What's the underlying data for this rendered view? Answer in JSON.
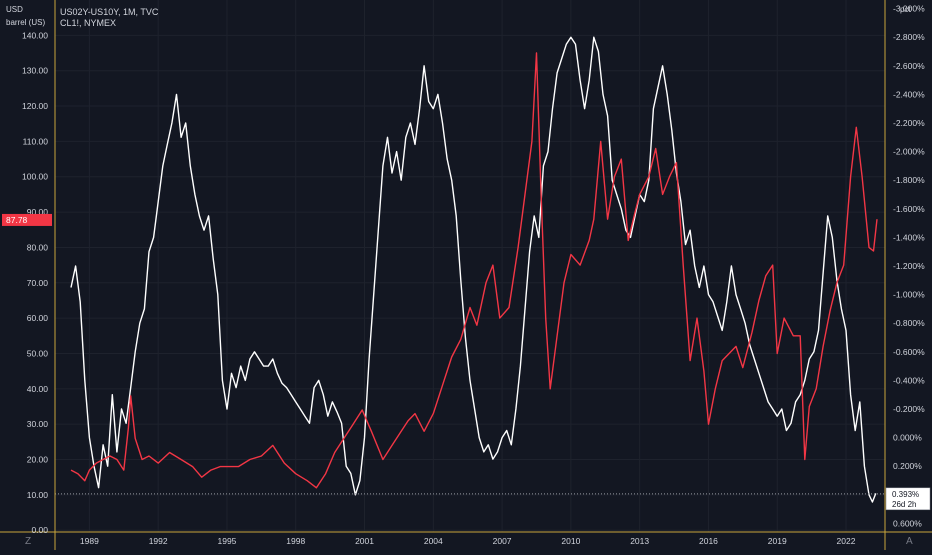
{
  "chart_data": {
    "type": "line",
    "title": "US02Y-US10Y, 1M, TVC",
    "subtitle": "CL1!, NYMEX",
    "left_axis": {
      "unit": "USD",
      "label": "barrel (US)",
      "ticks": [
        "0.00",
        "10.00",
        "20.00",
        "30.00",
        "40.00",
        "50.00",
        "60.00",
        "70.00",
        "80.00",
        "90.00",
        "100.00",
        "110.00",
        "120.00",
        "130.00",
        "140.00"
      ],
      "range": [
        -0.5,
        150
      ]
    },
    "right_axis": {
      "unit": "pct",
      "ticks": [
        "0.600%",
        "0.400%",
        "0.200%",
        "0.000%",
        "-0.200%",
        "-0.400%",
        "-0.600%",
        "-0.800%",
        "-1.000%",
        "-1.200%",
        "-1.400%",
        "-1.600%",
        "-1.800%",
        "-2.000%",
        "-2.200%",
        "-2.400%",
        "-2.600%",
        "-2.800%",
        "-3.000%"
      ],
      "range": [
        0.66,
        -3.06
      ]
    },
    "x_axis": {
      "ticks": [
        "1989",
        "1992",
        "1995",
        "1998",
        "2001",
        "2004",
        "2007",
        "2010",
        "2013",
        "2016",
        "2019",
        "2022"
      ],
      "range": [
        1987.5,
        2023.7
      ]
    },
    "series": [
      {
        "name": "US02Y-US10Y",
        "axis": "right",
        "color": "#ffffff",
        "points": [
          [
            1988.2,
            -1.05
          ],
          [
            1988.4,
            -1.2
          ],
          [
            1988.6,
            -0.95
          ],
          [
            1988.8,
            -0.4
          ],
          [
            1989.0,
            0.0
          ],
          [
            1989.2,
            0.2
          ],
          [
            1989.4,
            0.35
          ],
          [
            1989.6,
            0.05
          ],
          [
            1989.8,
            0.2
          ],
          [
            1990.0,
            -0.3
          ],
          [
            1990.2,
            0.1
          ],
          [
            1990.4,
            -0.2
          ],
          [
            1990.6,
            -0.1
          ],
          [
            1990.8,
            -0.35
          ],
          [
            1991.0,
            -0.6
          ],
          [
            1991.2,
            -0.8
          ],
          [
            1991.4,
            -0.9
          ],
          [
            1991.6,
            -1.3
          ],
          [
            1991.8,
            -1.4
          ],
          [
            1992.0,
            -1.65
          ],
          [
            1992.2,
            -1.9
          ],
          [
            1992.4,
            -2.05
          ],
          [
            1992.6,
            -2.2
          ],
          [
            1992.8,
            -2.4
          ],
          [
            1993.0,
            -2.1
          ],
          [
            1993.2,
            -2.2
          ],
          [
            1993.4,
            -1.9
          ],
          [
            1993.6,
            -1.7
          ],
          [
            1993.8,
            -1.55
          ],
          [
            1994.0,
            -1.45
          ],
          [
            1994.2,
            -1.55
          ],
          [
            1994.4,
            -1.25
          ],
          [
            1994.6,
            -1.0
          ],
          [
            1994.8,
            -0.4
          ],
          [
            1995.0,
            -0.2
          ],
          [
            1995.2,
            -0.45
          ],
          [
            1995.4,
            -0.35
          ],
          [
            1995.6,
            -0.5
          ],
          [
            1995.8,
            -0.4
          ],
          [
            1996.0,
            -0.55
          ],
          [
            1996.2,
            -0.6
          ],
          [
            1996.4,
            -0.55
          ],
          [
            1996.6,
            -0.5
          ],
          [
            1996.8,
            -0.5
          ],
          [
            1997.0,
            -0.55
          ],
          [
            1997.2,
            -0.45
          ],
          [
            1997.4,
            -0.38
          ],
          [
            1997.6,
            -0.35
          ],
          [
            1997.8,
            -0.3
          ],
          [
            1998.0,
            -0.25
          ],
          [
            1998.2,
            -0.2
          ],
          [
            1998.4,
            -0.15
          ],
          [
            1998.6,
            -0.1
          ],
          [
            1998.8,
            -0.35
          ],
          [
            1999.0,
            -0.4
          ],
          [
            1999.2,
            -0.3
          ],
          [
            1999.4,
            -0.15
          ],
          [
            1999.6,
            -0.25
          ],
          [
            1999.8,
            -0.18
          ],
          [
            2000.0,
            -0.1
          ],
          [
            2000.2,
            0.2
          ],
          [
            2000.4,
            0.25
          ],
          [
            2000.6,
            0.4
          ],
          [
            2000.8,
            0.3
          ],
          [
            2001.0,
            0.0
          ],
          [
            2001.2,
            -0.55
          ],
          [
            2001.4,
            -1.0
          ],
          [
            2001.6,
            -1.45
          ],
          [
            2001.8,
            -1.9
          ],
          [
            2002.0,
            -2.1
          ],
          [
            2002.2,
            -1.85
          ],
          [
            2002.4,
            -2.0
          ],
          [
            2002.6,
            -1.8
          ],
          [
            2002.8,
            -2.1
          ],
          [
            2003.0,
            -2.2
          ],
          [
            2003.2,
            -2.05
          ],
          [
            2003.4,
            -2.3
          ],
          [
            2003.6,
            -2.6
          ],
          [
            2003.8,
            -2.35
          ],
          [
            2004.0,
            -2.3
          ],
          [
            2004.2,
            -2.4
          ],
          [
            2004.4,
            -2.2
          ],
          [
            2004.6,
            -1.95
          ],
          [
            2004.8,
            -1.8
          ],
          [
            2005.0,
            -1.55
          ],
          [
            2005.2,
            -1.1
          ],
          [
            2005.4,
            -0.7
          ],
          [
            2005.6,
            -0.4
          ],
          [
            2005.8,
            -0.2
          ],
          [
            2006.0,
            0.0
          ],
          [
            2006.2,
            0.1
          ],
          [
            2006.4,
            0.05
          ],
          [
            2006.6,
            0.15
          ],
          [
            2006.8,
            0.1
          ],
          [
            2007.0,
            0.0
          ],
          [
            2007.2,
            -0.05
          ],
          [
            2007.4,
            0.05
          ],
          [
            2007.6,
            -0.2
          ],
          [
            2007.8,
            -0.5
          ],
          [
            2008.0,
            -0.9
          ],
          [
            2008.2,
            -1.3
          ],
          [
            2008.4,
            -1.55
          ],
          [
            2008.6,
            -1.4
          ],
          [
            2008.8,
            -1.9
          ],
          [
            2009.0,
            -2.0
          ],
          [
            2009.2,
            -2.3
          ],
          [
            2009.4,
            -2.55
          ],
          [
            2009.6,
            -2.65
          ],
          [
            2009.8,
            -2.75
          ],
          [
            2010.0,
            -2.8
          ],
          [
            2010.2,
            -2.75
          ],
          [
            2010.4,
            -2.5
          ],
          [
            2010.6,
            -2.3
          ],
          [
            2010.8,
            -2.5
          ],
          [
            2011.0,
            -2.8
          ],
          [
            2011.2,
            -2.7
          ],
          [
            2011.4,
            -2.4
          ],
          [
            2011.6,
            -2.25
          ],
          [
            2011.8,
            -1.8
          ],
          [
            2012.0,
            -1.7
          ],
          [
            2012.2,
            -1.6
          ],
          [
            2012.4,
            -1.45
          ],
          [
            2012.6,
            -1.4
          ],
          [
            2012.8,
            -1.55
          ],
          [
            2013.0,
            -1.7
          ],
          [
            2013.2,
            -1.65
          ],
          [
            2013.4,
            -1.8
          ],
          [
            2013.6,
            -2.3
          ],
          [
            2013.8,
            -2.45
          ],
          [
            2014.0,
            -2.6
          ],
          [
            2014.2,
            -2.4
          ],
          [
            2014.4,
            -2.15
          ],
          [
            2014.6,
            -1.85
          ],
          [
            2014.8,
            -1.65
          ],
          [
            2015.0,
            -1.35
          ],
          [
            2015.2,
            -1.45
          ],
          [
            2015.4,
            -1.2
          ],
          [
            2015.6,
            -1.05
          ],
          [
            2015.8,
            -1.2
          ],
          [
            2016.0,
            -1.0
          ],
          [
            2016.2,
            -0.95
          ],
          [
            2016.4,
            -0.85
          ],
          [
            2016.6,
            -0.75
          ],
          [
            2016.8,
            -0.95
          ],
          [
            2017.0,
            -1.2
          ],
          [
            2017.2,
            -1.0
          ],
          [
            2017.4,
            -0.9
          ],
          [
            2017.6,
            -0.8
          ],
          [
            2017.8,
            -0.65
          ],
          [
            2018.0,
            -0.55
          ],
          [
            2018.2,
            -0.45
          ],
          [
            2018.4,
            -0.35
          ],
          [
            2018.6,
            -0.25
          ],
          [
            2018.8,
            -0.2
          ],
          [
            2019.0,
            -0.15
          ],
          [
            2019.2,
            -0.2
          ],
          [
            2019.4,
            -0.05
          ],
          [
            2019.6,
            -0.1
          ],
          [
            2019.8,
            -0.25
          ],
          [
            2020.0,
            -0.3
          ],
          [
            2020.2,
            -0.4
          ],
          [
            2020.4,
            -0.55
          ],
          [
            2020.6,
            -0.6
          ],
          [
            2020.8,
            -0.75
          ],
          [
            2021.0,
            -1.15
          ],
          [
            2021.2,
            -1.55
          ],
          [
            2021.4,
            -1.4
          ],
          [
            2021.6,
            -1.1
          ],
          [
            2021.8,
            -0.9
          ],
          [
            2022.0,
            -0.75
          ],
          [
            2022.2,
            -0.3
          ],
          [
            2022.4,
            -0.05
          ],
          [
            2022.6,
            -0.25
          ],
          [
            2022.8,
            0.2
          ],
          [
            2023.0,
            0.4
          ],
          [
            2023.15,
            0.45
          ],
          [
            2023.3,
            0.39
          ]
        ]
      },
      {
        "name": "CL1!",
        "axis": "left",
        "color": "#f23645",
        "points": [
          [
            1988.2,
            17
          ],
          [
            1988.5,
            16
          ],
          [
            1988.8,
            14
          ],
          [
            1989.0,
            17
          ],
          [
            1989.3,
            19
          ],
          [
            1989.6,
            20
          ],
          [
            1989.9,
            21
          ],
          [
            1990.2,
            20
          ],
          [
            1990.5,
            17
          ],
          [
            1990.7,
            29
          ],
          [
            1990.8,
            38
          ],
          [
            1991.0,
            26
          ],
          [
            1991.3,
            20
          ],
          [
            1991.6,
            21
          ],
          [
            1992.0,
            19
          ],
          [
            1992.5,
            22
          ],
          [
            1993.0,
            20
          ],
          [
            1993.5,
            18
          ],
          [
            1993.9,
            15
          ],
          [
            1994.3,
            17
          ],
          [
            1994.7,
            18
          ],
          [
            1995.0,
            18
          ],
          [
            1995.5,
            18
          ],
          [
            1996.0,
            20
          ],
          [
            1996.5,
            21
          ],
          [
            1997.0,
            24
          ],
          [
            1997.5,
            19
          ],
          [
            1998.0,
            16
          ],
          [
            1998.5,
            14
          ],
          [
            1998.9,
            12
          ],
          [
            1999.3,
            16
          ],
          [
            1999.7,
            22
          ],
          [
            2000.0,
            25
          ],
          [
            2000.5,
            30
          ],
          [
            2000.9,
            34
          ],
          [
            2001.3,
            28
          ],
          [
            2001.8,
            20
          ],
          [
            2002.2,
            24
          ],
          [
            2002.6,
            28
          ],
          [
            2002.9,
            31
          ],
          [
            2003.2,
            33
          ],
          [
            2003.6,
            28
          ],
          [
            2004.0,
            33
          ],
          [
            2004.4,
            41
          ],
          [
            2004.8,
            49
          ],
          [
            2005.2,
            54
          ],
          [
            2005.6,
            63
          ],
          [
            2005.9,
            58
          ],
          [
            2006.3,
            70
          ],
          [
            2006.6,
            75
          ],
          [
            2006.9,
            60
          ],
          [
            2007.3,
            63
          ],
          [
            2007.7,
            80
          ],
          [
            2008.0,
            95
          ],
          [
            2008.3,
            110
          ],
          [
            2008.5,
            135
          ],
          [
            2008.7,
            95
          ],
          [
            2008.9,
            60
          ],
          [
            2009.1,
            40
          ],
          [
            2009.4,
            55
          ],
          [
            2009.7,
            70
          ],
          [
            2010.0,
            78
          ],
          [
            2010.4,
            75
          ],
          [
            2010.8,
            82
          ],
          [
            2011.0,
            88
          ],
          [
            2011.3,
            110
          ],
          [
            2011.6,
            88
          ],
          [
            2011.9,
            100
          ],
          [
            2012.2,
            105
          ],
          [
            2012.5,
            82
          ],
          [
            2012.8,
            90
          ],
          [
            2013.0,
            95
          ],
          [
            2013.4,
            100
          ],
          [
            2013.7,
            108
          ],
          [
            2014.0,
            95
          ],
          [
            2014.3,
            100
          ],
          [
            2014.6,
            104
          ],
          [
            2014.9,
            75
          ],
          [
            2015.2,
            48
          ],
          [
            2015.5,
            60
          ],
          [
            2015.8,
            45
          ],
          [
            2016.0,
            30
          ],
          [
            2016.3,
            40
          ],
          [
            2016.6,
            48
          ],
          [
            2016.9,
            50
          ],
          [
            2017.2,
            52
          ],
          [
            2017.5,
            46
          ],
          [
            2017.9,
            56
          ],
          [
            2018.2,
            65
          ],
          [
            2018.5,
            72
          ],
          [
            2018.8,
            75
          ],
          [
            2019.0,
            50
          ],
          [
            2019.3,
            60
          ],
          [
            2019.7,
            55
          ],
          [
            2020.0,
            55
          ],
          [
            2020.2,
            20
          ],
          [
            2020.4,
            35
          ],
          [
            2020.7,
            40
          ],
          [
            2021.0,
            52
          ],
          [
            2021.3,
            62
          ],
          [
            2021.6,
            70
          ],
          [
            2021.9,
            75
          ],
          [
            2022.2,
            100
          ],
          [
            2022.45,
            114
          ],
          [
            2022.7,
            100
          ],
          [
            2023.0,
            80
          ],
          [
            2023.2,
            79
          ],
          [
            2023.35,
            88
          ]
        ]
      }
    ],
    "last_price_label": "87.78",
    "last_value_label": "0.393%",
    "countdown_label": "26d 2h",
    "grid": true,
    "legend_position": "top-left"
  },
  "colors": {
    "background": "#131722",
    "grid": "#1e222d",
    "accent_border": "#c8a53c",
    "text": "#d1d4dc",
    "muted": "#787b86"
  },
  "corner_left": "Z",
  "corner_right": "A"
}
